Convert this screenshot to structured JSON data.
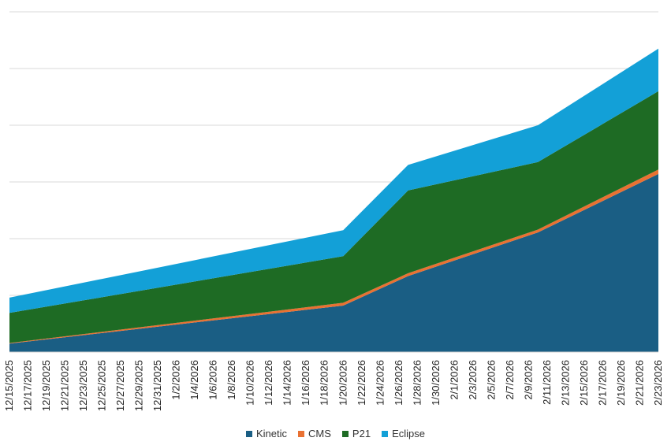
{
  "chart_data": {
    "type": "area",
    "stacked": true,
    "title": "",
    "xlabel": "",
    "ylabel": "",
    "ylim": [
      0,
      60
    ],
    "grid": true,
    "legend_position": "bottom",
    "categories": [
      "12/15/2025",
      "12/17/2025",
      "12/19/2025",
      "12/21/2025",
      "12/23/2025",
      "12/25/2025",
      "12/27/2025",
      "12/29/2025",
      "12/31/2025",
      "1/2/2026",
      "1/4/2026",
      "1/6/2026",
      "1/8/2026",
      "1/10/2026",
      "1/12/2026",
      "1/14/2026",
      "1/16/2026",
      "1/18/2026",
      "1/20/2026",
      "1/22/2026",
      "1/24/2026",
      "1/26/2026",
      "1/28/2026",
      "1/30/2026",
      "2/1/2026",
      "2/3/2026",
      "2/5/2026",
      "2/7/2026",
      "2/9/2026",
      "2/11/2026",
      "2/13/2026",
      "2/15/2026",
      "2/17/2026",
      "2/19/2026",
      "2/21/2026",
      "2/23/2026"
    ],
    "points": [
      {
        "date": "12/15/2025",
        "Kinetic": 1.5,
        "CMS": 0.1,
        "P21": 5.3,
        "Eclipse": 2.7
      },
      {
        "date": "1/20/2026",
        "Kinetic": 8.2,
        "CMS": 0.5,
        "P21": 8.2,
        "Eclipse": 4.6
      },
      {
        "date": "1/27/2026",
        "Kinetic": 13.4,
        "CMS": 0.5,
        "P21": 14.6,
        "Eclipse": 4.5
      },
      {
        "date": "2/10/2026",
        "Kinetic": 21.1,
        "CMS": 0.5,
        "P21": 11.9,
        "Eclipse": 6.5
      },
      {
        "date": "2/23/2026",
        "Kinetic": 31.4,
        "CMS": 0.8,
        "P21": 13.8,
        "Eclipse": 7.5
      }
    ],
    "series": [
      {
        "name": "Kinetic",
        "color": "#1a5e84"
      },
      {
        "name": "CMS",
        "color": "#e97132"
      },
      {
        "name": "P21",
        "color": "#1e6b24"
      },
      {
        "name": "Eclipse",
        "color": "#13a0d7"
      }
    ]
  }
}
